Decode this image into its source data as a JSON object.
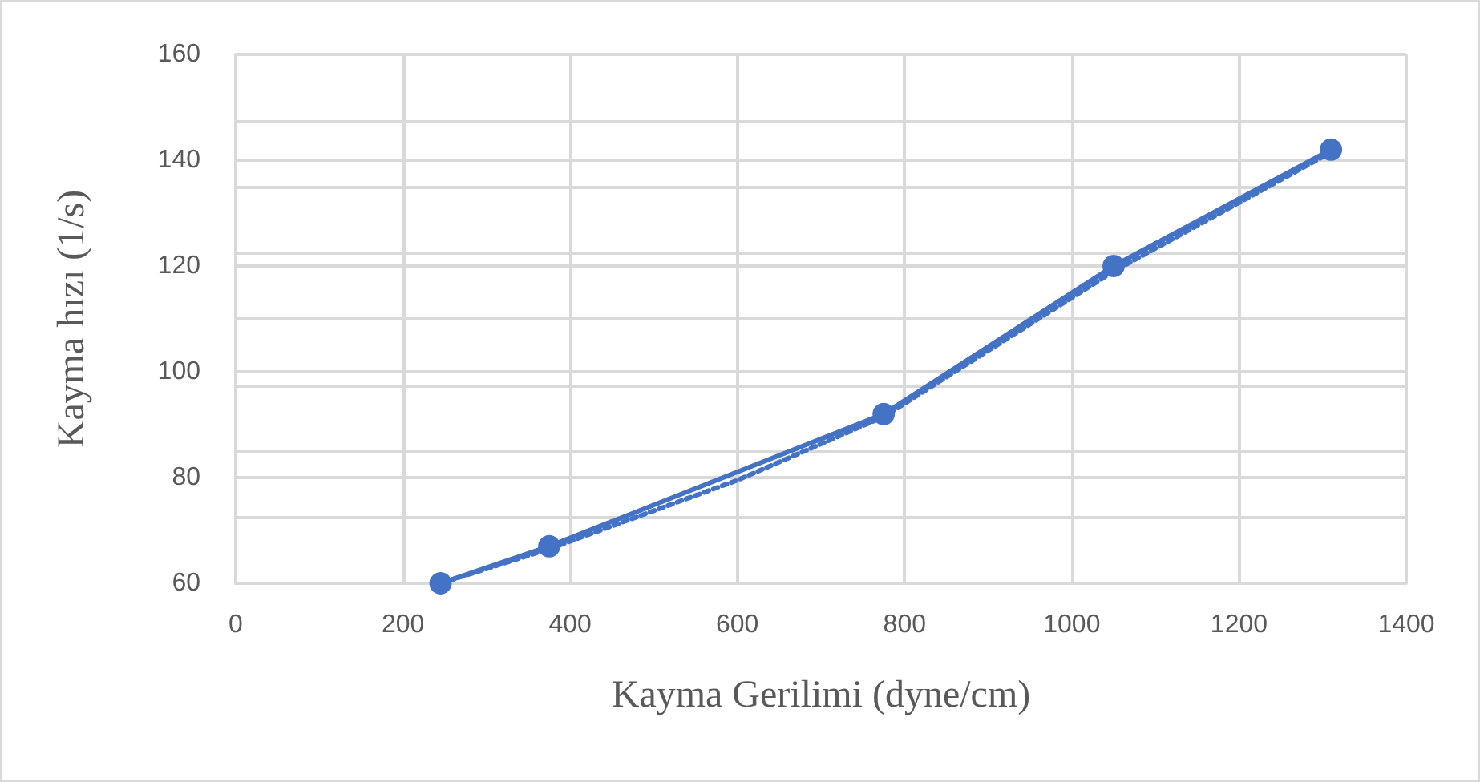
{
  "chart_data": {
    "type": "line",
    "xlabel": "Kayma Gerilimi (dyne/cm)",
    "ylabel": "Kayma hızı (1/s)",
    "x": [
      245,
      375,
      775,
      1050,
      1310
    ],
    "series": [
      {
        "color": "#4472c4",
        "values": [
          60,
          67,
          92,
          120,
          142
        ],
        "marker": "circle",
        "line_style": "solid"
      },
      {
        "type": "line",
        "color": "#4472c4",
        "x": [
          245,
          375,
          600,
          775,
          1050,
          1310
        ],
        "values": [
          60,
          66.5,
          79.5,
          91.5,
          119,
          141.5
        ],
        "marker": "none",
        "line_style": "dotted"
      }
    ],
    "xlim": [
      0,
      1400
    ],
    "xticks": [
      0,
      200,
      400,
      600,
      800,
      1000,
      1200,
      1400
    ],
    "ylim": [
      60,
      160
    ],
    "yticks": [
      60,
      {
        "value": 72.5,
        "label": null
      },
      80,
      {
        "value": 85,
        "label": null
      },
      {
        "value": 97.5,
        "label": null
      },
      100,
      {
        "value": 110,
        "label": null
      },
      120,
      {
        "value": 122.5,
        "label": null
      },
      {
        "value": 135,
        "label": null
      },
      140,
      {
        "value": 147.5,
        "label": null
      },
      160
    ],
    "grid": true
  }
}
